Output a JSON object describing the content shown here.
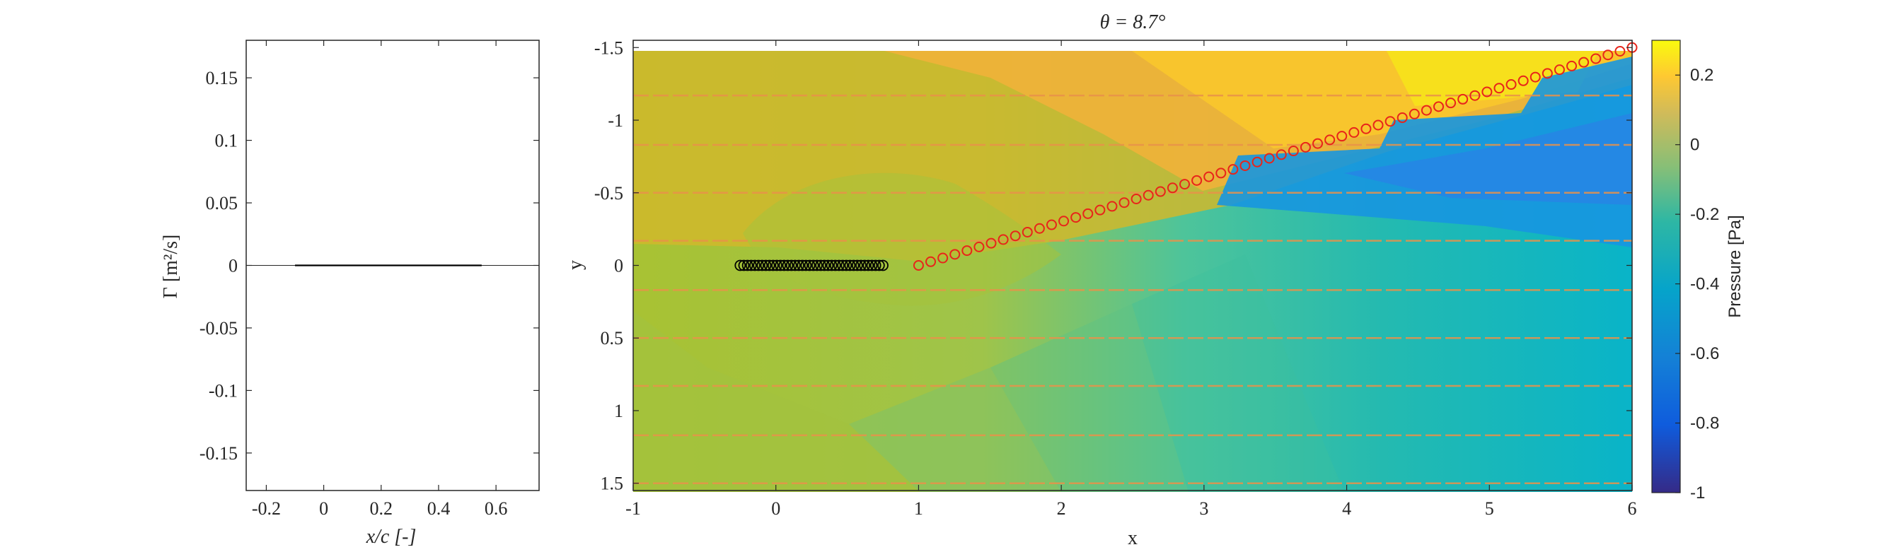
{
  "chart_data": [
    {
      "type": "line",
      "panel": "circulation",
      "xlabel": "x/c [-]",
      "ylabel": "Γ [m²/s]",
      "xlim": [
        -0.27,
        0.75
      ],
      "ylim": [
        -0.18,
        0.18
      ],
      "xticks": [
        "-0.2",
        "0",
        "0.2",
        "0.4",
        "0.6"
      ],
      "yticks": [
        "0.15",
        "0.1",
        "0.05",
        "0",
        "-0.05",
        "-0.1",
        "-0.15"
      ],
      "grid": false,
      "series": [
        {
          "x": [
            -0.1,
            0.0,
            0.1,
            0.2,
            0.3,
            0.4,
            0.5,
            0.55
          ],
          "y": [
            0,
            0,
            0,
            0,
            0,
            0,
            0,
            0
          ],
          "color": "#000000"
        }
      ]
    },
    {
      "type": "heatmap",
      "panel": "pressure-field",
      "title": "θ = 8.7°",
      "xlabel": "x",
      "ylabel": "y",
      "xlim": [
        -1,
        6
      ],
      "ylim": [
        -1.55,
        1.55
      ],
      "y_reversed": true,
      "xticks": [
        "-1",
        "0",
        "1",
        "2",
        "3",
        "4",
        "5",
        "6"
      ],
      "yticks": [
        "-1.5",
        "-1",
        "-0.5",
        "0",
        "0.5",
        "1",
        "1.5"
      ],
      "colorbar": {
        "label": "Pressure [Pa]",
        "range": [
          -1,
          0.3
        ],
        "ticks": [
          "0.2",
          "0",
          "-0.2",
          "-0.4",
          "-0.6",
          "-0.8",
          "-1"
        ],
        "colormap": "parula"
      },
      "airfoil": {
        "x_start": -0.25,
        "x_end": 0.75,
        "y": 0,
        "count": 40,
        "marker": "circle",
        "color": "#000000"
      },
      "wake": {
        "x_start": 1.0,
        "x_end": 6.0,
        "y_start": 0.0,
        "y_end": -1.5,
        "count": 60,
        "marker": "circle",
        "color": "#e8241a"
      },
      "streamlines_y": [
        -1.5,
        -1.17,
        -0.83,
        -0.5,
        -0.17,
        0.17,
        0.5,
        0.83,
        1.17,
        1.5
      ],
      "streamline_color": "#e9924a"
    }
  ]
}
